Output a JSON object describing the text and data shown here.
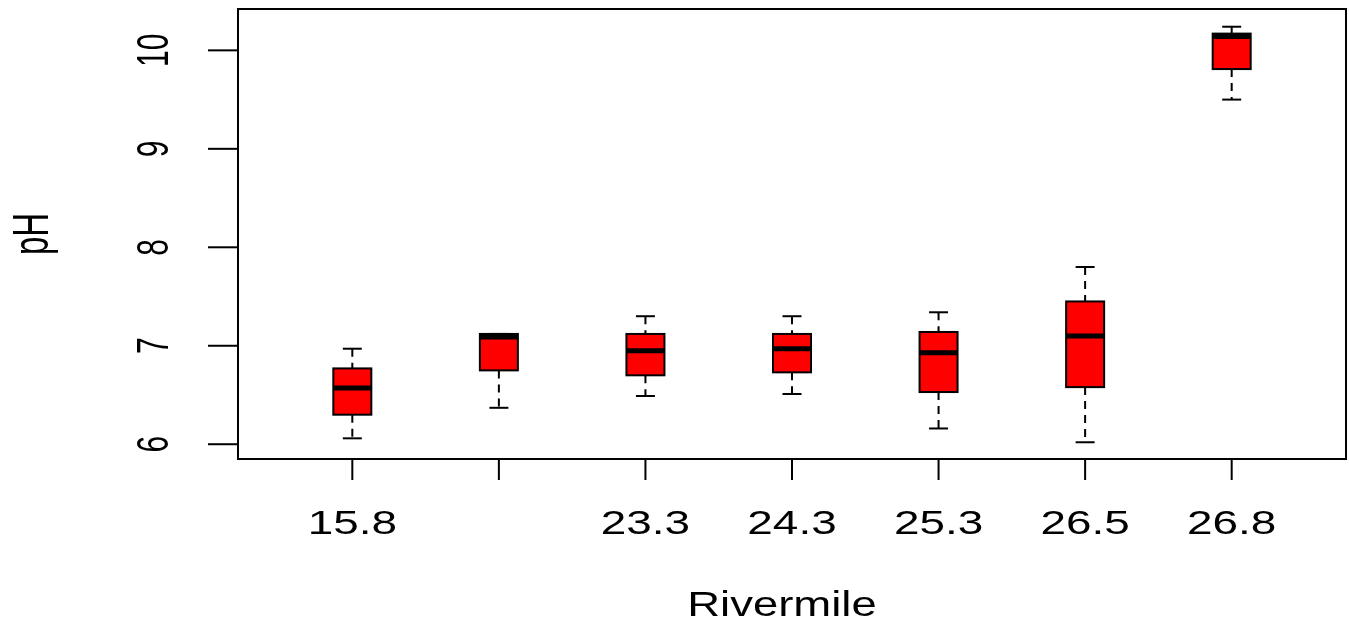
{
  "chart_data": {
    "type": "box",
    "xlabel": "Rivermile",
    "ylabel": "pH",
    "categories": [
      "15.8",
      null,
      "23.3",
      "24.3",
      "25.3",
      "26.5",
      "26.8"
    ],
    "ylim": [
      5.85,
      10.42
    ],
    "yticks": [
      6,
      7,
      8,
      9,
      10
    ],
    "color": "#ff0000",
    "boxes": [
      {
        "low": 6.06,
        "q1": 6.3,
        "median": 6.57,
        "q3": 6.77,
        "high": 6.97
      },
      {
        "low": 6.37,
        "q1": 6.75,
        "median": 7.09,
        "q3": 7.12,
        "high": 7.12
      },
      {
        "low": 6.49,
        "q1": 6.7,
        "median": 6.95,
        "q3": 7.12,
        "high": 7.3
      },
      {
        "low": 6.51,
        "q1": 6.73,
        "median": 6.97,
        "q3": 7.12,
        "high": 7.3
      },
      {
        "low": 6.16,
        "q1": 6.53,
        "median": 6.93,
        "q3": 7.14,
        "high": 7.34
      },
      {
        "low": 6.02,
        "q1": 6.58,
        "median": 7.1,
        "q3": 7.45,
        "high": 7.8
      },
      {
        "low": 9.5,
        "q1": 9.81,
        "median": 10.14,
        "q3": 10.17,
        "high": 10.24
      }
    ]
  }
}
